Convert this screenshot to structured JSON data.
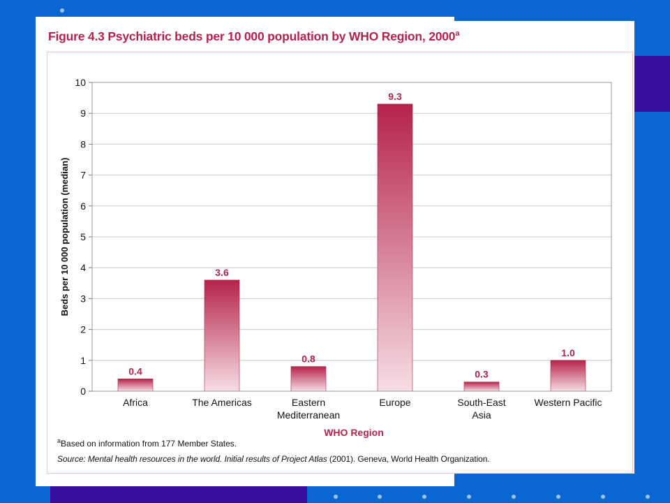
{
  "figure": {
    "title": "Figure 4.3 Psychiatric beds per 10 000 population by WHO Region, 2000",
    "title_superscript": "a",
    "footnote_marker": "a",
    "footnote_text": "Based on information from 177 Member States.",
    "source_label": "Source:",
    "source_italic": "Mental health resources in the world. Initial results of Project Atlas",
    "source_rest": "(2001).  Geneva, World Health Organization."
  },
  "colors": {
    "background": "#0a66d0",
    "accent_purple": "#3a0fa0",
    "title": "#b5234a",
    "bar_top": "#b5234a",
    "bar_bottom": "#f6dde4",
    "grid": "#c8c8c8"
  },
  "chart_data": {
    "type": "bar",
    "categories": [
      [
        "Africa"
      ],
      [
        "The Americas"
      ],
      [
        "Eastern",
        "Mediterranean"
      ],
      [
        "Europe"
      ],
      [
        "South-East",
        "Asia"
      ],
      [
        "Western Pacific"
      ]
    ],
    "values": [
      0.4,
      3.6,
      0.8,
      9.3,
      0.3,
      1.0
    ],
    "value_labels": [
      "0.4",
      "3.6",
      "0.8",
      "9.3",
      "0.3",
      "1.0"
    ],
    "xlabel": "WHO Region",
    "ylabel": "Beds per 10 000 population (median)",
    "ylim": [
      0,
      10
    ],
    "yticks": [
      0,
      1,
      2,
      3,
      4,
      5,
      6,
      7,
      8,
      9,
      10
    ],
    "grid": true,
    "legend": "none"
  }
}
